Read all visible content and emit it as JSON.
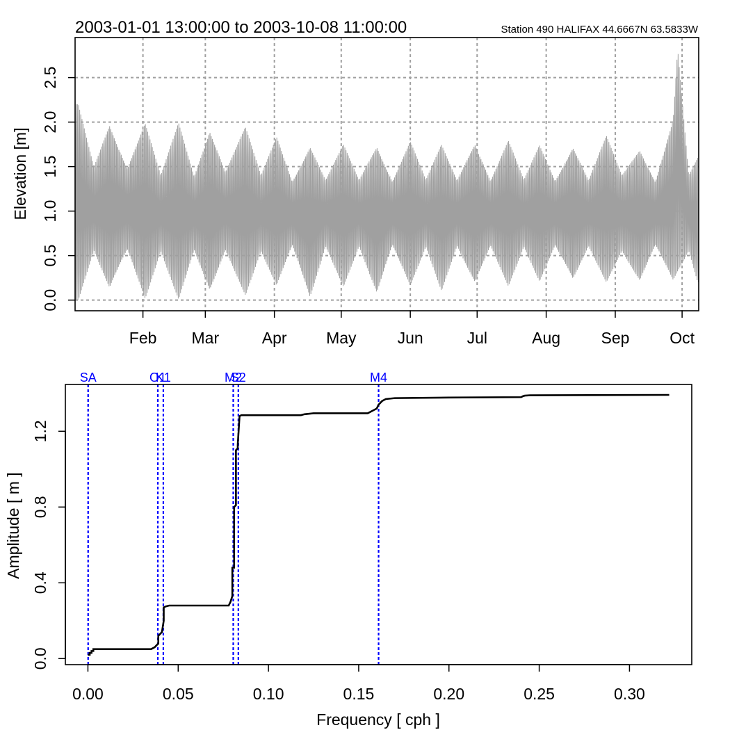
{
  "chart_data": [
    {
      "type": "line",
      "title": "2003-01-01 13:00:00 to 2003-10-08 11:00:00",
      "subtitle": "Station 490 HALIFAX 44.6667N 63.5833W",
      "xlabel": "",
      "ylabel": "Elevation [m]",
      "x_range": [
        "2003-01-01 13:00",
        "2003-10-08 11:00"
      ],
      "ylim": [
        -0.12,
        2.95
      ],
      "y_ticks": [
        0.0,
        0.5,
        1.0,
        1.5,
        2.0,
        2.5
      ],
      "y_tick_labels": [
        "0.0",
        "0.5",
        "1.0",
        "1.5",
        "2.0",
        "2.5"
      ],
      "x_ticks": [
        {
          "date": "2003-02-01",
          "label": "Feb"
        },
        {
          "date": "2003-03-01",
          "label": "Mar"
        },
        {
          "date": "2003-04-01",
          "label": "Apr"
        },
        {
          "date": "2003-05-01",
          "label": "May"
        },
        {
          "date": "2003-06-01",
          "label": "Jun"
        },
        {
          "date": "2003-07-01",
          "label": "Jul"
        },
        {
          "date": "2003-08-01",
          "label": "Aug"
        },
        {
          "date": "2003-09-01",
          "label": "Sep"
        },
        {
          "date": "2003-10-01",
          "label": "Oct"
        }
      ],
      "grid": true,
      "series_color": "#a0a0a0",
      "grid_color": "#a0a0a0",
      "tidal_envelope": {
        "mean_level": 1.0,
        "peak_envelope": [
          {
            "date": "2003-01-03",
            "high": 2.2,
            "low": 0.0
          },
          {
            "date": "2003-01-10",
            "high": 1.5,
            "low": 0.55
          },
          {
            "date": "2003-01-17",
            "high": 2.0,
            "low": 0.1
          },
          {
            "date": "2003-01-25",
            "high": 1.5,
            "low": 0.55
          },
          {
            "date": "2003-02-02",
            "high": 2.0,
            "low": 0.0
          },
          {
            "date": "2003-02-09",
            "high": 1.4,
            "low": 0.55
          },
          {
            "date": "2003-02-17",
            "high": 2.0,
            "low": 0.0
          },
          {
            "date": "2003-02-24",
            "high": 1.4,
            "low": 0.55
          },
          {
            "date": "2003-03-03",
            "high": 1.95,
            "low": 0.05
          },
          {
            "date": "2003-03-10",
            "high": 1.45,
            "low": 0.55
          },
          {
            "date": "2003-03-19",
            "high": 1.95,
            "low": 0.05
          },
          {
            "date": "2003-03-26",
            "high": 1.4,
            "low": 0.55
          },
          {
            "date": "2003-04-02",
            "high": 1.85,
            "low": 0.15
          },
          {
            "date": "2003-04-09",
            "high": 1.35,
            "low": 0.6
          },
          {
            "date": "2003-04-17",
            "high": 1.75,
            "low": 0.0
          },
          {
            "date": "2003-04-24",
            "high": 1.35,
            "low": 0.6
          },
          {
            "date": "2003-05-02",
            "high": 1.75,
            "low": 0.15
          },
          {
            "date": "2003-05-09",
            "high": 1.35,
            "low": 0.6
          },
          {
            "date": "2003-05-17",
            "high": 1.75,
            "low": 0.05
          },
          {
            "date": "2003-05-24",
            "high": 1.35,
            "low": 0.6
          },
          {
            "date": "2003-06-01",
            "high": 1.8,
            "low": 0.15
          },
          {
            "date": "2003-06-08",
            "high": 1.35,
            "low": 0.6
          },
          {
            "date": "2003-06-15",
            "high": 1.75,
            "low": 0.1
          },
          {
            "date": "2003-06-22",
            "high": 1.35,
            "low": 0.6
          },
          {
            "date": "2003-06-30",
            "high": 1.8,
            "low": 0.15
          },
          {
            "date": "2003-07-07",
            "high": 1.35,
            "low": 0.6
          },
          {
            "date": "2003-07-15",
            "high": 1.8,
            "low": 0.15
          },
          {
            "date": "2003-07-22",
            "high": 1.35,
            "low": 0.6
          },
          {
            "date": "2003-07-29",
            "high": 1.75,
            "low": 0.2
          },
          {
            "date": "2003-08-05",
            "high": 1.35,
            "low": 0.6
          },
          {
            "date": "2003-08-13",
            "high": 1.75,
            "low": 0.2
          },
          {
            "date": "2003-08-20",
            "high": 1.35,
            "low": 0.6
          },
          {
            "date": "2003-08-28",
            "high": 1.85,
            "low": 0.2
          },
          {
            "date": "2003-09-04",
            "high": 1.4,
            "low": 0.55
          },
          {
            "date": "2003-09-12",
            "high": 1.7,
            "low": 0.2
          },
          {
            "date": "2003-09-19",
            "high": 1.35,
            "low": 0.6
          },
          {
            "date": "2003-09-27",
            "high": 2.05,
            "low": 0.2
          },
          {
            "date": "2003-09-29",
            "high": 2.85,
            "low": 0.3
          },
          {
            "date": "2003-10-04",
            "high": 1.4,
            "low": 0.55
          },
          {
            "date": "2003-10-08",
            "high": 1.6,
            "low": 0.2
          }
        ]
      }
    },
    {
      "type": "line",
      "title": "",
      "xlabel": "Frequency [ cph ]",
      "ylabel": "Amplitude [ m ]",
      "xlim": [
        -0.0125,
        0.3345
      ],
      "ylim": [
        -0.032,
        1.447
      ],
      "x_ticks": [
        0.0,
        0.05,
        0.1,
        0.15,
        0.2,
        0.25,
        0.3
      ],
      "x_tick_labels": [
        "0.00",
        "0.05",
        "0.10",
        "0.15",
        "0.20",
        "0.25",
        "0.30"
      ],
      "y_ticks": [
        0.0,
        0.4,
        0.8,
        1.2
      ],
      "y_tick_labels": [
        "0.0",
        "0.4",
        "0.8",
        "1.2"
      ],
      "grid": false,
      "series_color": "#000000",
      "constituent_color": "#0000ff",
      "x": [
        0.0,
        0.001,
        0.001,
        0.002,
        0.002,
        0.003,
        0.003,
        0.035,
        0.036,
        0.037,
        0.038,
        0.039,
        0.039,
        0.04,
        0.041,
        0.042,
        0.042,
        0.043,
        0.045,
        0.078,
        0.079,
        0.08,
        0.08,
        0.081,
        0.081,
        0.082,
        0.082,
        0.083,
        0.083,
        0.084,
        0.085,
        0.086,
        0.118,
        0.12,
        0.125,
        0.155,
        0.16,
        0.161,
        0.162,
        0.163,
        0.165,
        0.17,
        0.2,
        0.24,
        0.241,
        0.242,
        0.245,
        0.322
      ],
      "y": [
        0.02,
        0.02,
        0.03,
        0.03,
        0.04,
        0.04,
        0.05,
        0.05,
        0.055,
        0.06,
        0.07,
        0.08,
        0.12,
        0.13,
        0.14,
        0.2,
        0.27,
        0.275,
        0.28,
        0.28,
        0.3,
        0.33,
        0.48,
        0.48,
        0.8,
        0.81,
        1.1,
        1.11,
        1.13,
        1.28,
        1.285,
        1.285,
        1.285,
        1.29,
        1.295,
        1.295,
        1.32,
        1.34,
        1.35,
        1.36,
        1.37,
        1.375,
        1.378,
        1.38,
        1.385,
        1.388,
        1.39,
        1.392
      ],
      "constituents": [
        {
          "name": "SA",
          "frequency": 0.000114
        },
        {
          "name": "O1",
          "frequency": 0.03873
        },
        {
          "name": "K1",
          "frequency": 0.04178
        },
        {
          "name": "M2",
          "frequency": 0.08051
        },
        {
          "name": "S2",
          "frequency": 0.08333
        },
        {
          "name": "M4",
          "frequency": 0.16102
        }
      ]
    }
  ]
}
